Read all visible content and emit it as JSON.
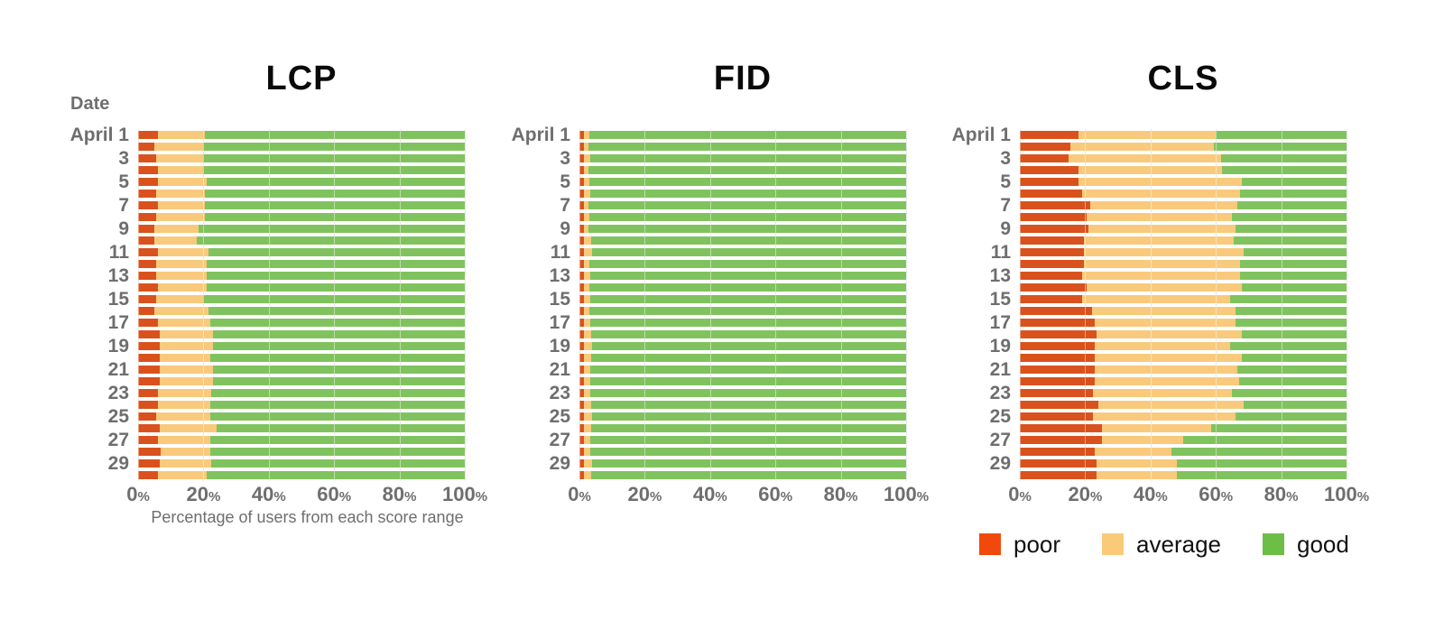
{
  "y_axis": {
    "title": "Date"
  },
  "x_axis": {
    "title": "Percentage of users from each score range",
    "tick_values": [
      0,
      20,
      40,
      60,
      80,
      100
    ],
    "tick_suffix": "%"
  },
  "legend": {
    "items": [
      {
        "key": "poor",
        "label": "poor"
      },
      {
        "key": "average",
        "label": "average"
      },
      {
        "key": "good",
        "label": "good"
      }
    ]
  },
  "colors": {
    "series": {
      "poor": "#d9521d",
      "average": "#f9ca7c",
      "good": "#80c35e"
    },
    "legend": {
      "poor": "#f1490c",
      "average": "#fbca79",
      "good": "#6cbe46"
    },
    "grid_back": "#d8d8d8",
    "grid_front": "rgba(255,255,255,0.45)",
    "label_text": "#6e6e6e",
    "title_text": "#0a0a0a"
  },
  "chart_data": [
    {
      "type": "bar",
      "stacked": true,
      "orientation": "horizontal",
      "title": "LCP",
      "xlabel": "Percentage of users from each score range",
      "ylabel": "Date",
      "xlim": [
        0,
        100
      ],
      "grid": "vertical lines every 20%",
      "legend_position": "none",
      "categories": [
        "April 1",
        "April 2",
        "April 3",
        "April 4",
        "April 5",
        "April 6",
        "April 7",
        "April 8",
        "April 9",
        "April 10",
        "April 11",
        "April 12",
        "April 13",
        "April 14",
        "April 15",
        "April 16",
        "April 17",
        "April 18",
        "April 19",
        "April 20",
        "April 21",
        "April 22",
        "April 23",
        "April 24",
        "April 25",
        "April 26",
        "April 27",
        "April 28",
        "April 29",
        "April 30"
      ],
      "y_labels": [
        "April 1",
        "",
        "3",
        "",
        "5",
        "",
        "7",
        "",
        "9",
        "",
        "11",
        "",
        "13",
        "",
        "15",
        "",
        "17",
        "",
        "19",
        "",
        "21",
        "",
        "23",
        "",
        "25",
        "",
        "27",
        "",
        "29",
        ""
      ],
      "series": [
        {
          "name": "poor",
          "values": [
            6,
            5,
            5.5,
            6,
            6,
            5.5,
            6,
            5.5,
            5,
            5,
            6,
            5.5,
            5.5,
            6,
            5.5,
            5,
            6,
            6.5,
            6.5,
            6.5,
            6.5,
            6.5,
            6,
            6,
            5.5,
            6.5,
            6,
            7,
            6.5,
            6
          ]
        },
        {
          "name": "average",
          "values": [
            14.5,
            15,
            14.5,
            14,
            15,
            15,
            14.5,
            15,
            13.5,
            13,
            15.5,
            15.5,
            15.5,
            15,
            14.5,
            16.5,
            16,
            16.5,
            16.5,
            15.5,
            16.5,
            16.5,
            16.5,
            16,
            16.5,
            17.5,
            16,
            15,
            16,
            15
          ]
        },
        {
          "name": "good",
          "values": [
            79.5,
            80,
            80,
            80,
            79,
            79.5,
            79.5,
            79.5,
            81.5,
            82,
            78.5,
            79,
            79,
            79,
            80,
            78.5,
            78,
            77,
            77,
            78,
            77,
            77,
            77.5,
            78,
            78,
            76,
            78,
            78,
            77.5,
            79
          ]
        }
      ]
    },
    {
      "type": "bar",
      "stacked": true,
      "orientation": "horizontal",
      "title": "FID",
      "xlabel": "",
      "ylabel": "",
      "xlim": [
        0,
        100
      ],
      "grid": "vertical lines every 20%",
      "legend_position": "none",
      "categories": [
        "April 1",
        "April 2",
        "April 3",
        "April 4",
        "April 5",
        "April 6",
        "April 7",
        "April 8",
        "April 9",
        "April 10",
        "April 11",
        "April 12",
        "April 13",
        "April 14",
        "April 15",
        "April 16",
        "April 17",
        "April 18",
        "April 19",
        "April 20",
        "April 21",
        "April 22",
        "April 23",
        "April 24",
        "April 25",
        "April 26",
        "April 27",
        "April 28",
        "April 29",
        "April 30"
      ],
      "y_labels": [
        "April 1",
        "",
        "3",
        "",
        "5",
        "",
        "7",
        "",
        "9",
        "",
        "11",
        "",
        "13",
        "",
        "15",
        "",
        "17",
        "",
        "19",
        "",
        "21",
        "",
        "23",
        "",
        "25",
        "",
        "27",
        "",
        "29",
        ""
      ],
      "series": [
        {
          "name": "poor",
          "values": [
            1.4,
            1.4,
            1.4,
            1.4,
            1.4,
            1.4,
            1.4,
            1.4,
            1.4,
            1.4,
            1.4,
            1.4,
            1.4,
            1.4,
            1.4,
            1.4,
            1.4,
            1.4,
            1.4,
            1.4,
            1.4,
            1.4,
            1.4,
            1.4,
            1.4,
            1.4,
            1.4,
            1.4,
            1.4,
            1.4
          ]
        },
        {
          "name": "average",
          "values": [
            1.6,
            1.4,
            1.8,
            1.4,
            1.6,
            1.8,
            1.4,
            1.6,
            1.4,
            2.2,
            2.4,
            1.6,
            1.8,
            1.6,
            1.8,
            1.6,
            1.8,
            2.2,
            2.4,
            2.2,
            1.8,
            2,
            1.8,
            2.2,
            2.4,
            2.2,
            1.8,
            2,
            2.4,
            2.2
          ]
        },
        {
          "name": "good",
          "values": [
            97,
            97.2,
            96.8,
            97.2,
            97,
            96.8,
            97.2,
            97,
            97.2,
            96.4,
            96.2,
            97,
            96.8,
            97,
            96.8,
            97,
            96.8,
            96.4,
            96.2,
            96.4,
            96.8,
            96.6,
            96.8,
            96.4,
            96.2,
            96.4,
            96.8,
            96.6,
            96.2,
            96.4
          ]
        }
      ]
    },
    {
      "type": "bar",
      "stacked": true,
      "orientation": "horizontal",
      "title": "CLS",
      "xlabel": "",
      "ylabel": "",
      "xlim": [
        0,
        100
      ],
      "grid": "vertical lines every 20%",
      "legend_position": "bottom",
      "categories": [
        "April 1",
        "April 2",
        "April 3",
        "April 4",
        "April 5",
        "April 6",
        "April 7",
        "April 8",
        "April 9",
        "April 10",
        "April 11",
        "April 12",
        "April 13",
        "April 14",
        "April 15",
        "April 16",
        "April 17",
        "April 18",
        "April 19",
        "April 20",
        "April 21",
        "April 22",
        "April 23",
        "April 24",
        "April 25",
        "April 26",
        "April 27",
        "April 28",
        "April 29",
        "April 30"
      ],
      "y_labels": [
        "April 1",
        "",
        "3",
        "",
        "5",
        "",
        "7",
        "",
        "9",
        "",
        "11",
        "",
        "13",
        "",
        "15",
        "",
        "17",
        "",
        "19",
        "",
        "21",
        "",
        "23",
        "",
        "25",
        "",
        "27",
        "",
        "29",
        ""
      ],
      "series": [
        {
          "name": "poor",
          "values": [
            18,
            15.5,
            15,
            18,
            18,
            19,
            21.5,
            20.5,
            21,
            19.5,
            19.5,
            19.5,
            19,
            20.5,
            19,
            22,
            23,
            23.5,
            23,
            23,
            23,
            23,
            22.5,
            24,
            22.5,
            25,
            25,
            23,
            23.5,
            23.5
          ]
        },
        {
          "name": "average",
          "values": [
            42,
            44,
            46.5,
            44,
            50,
            48.5,
            45,
            44.5,
            45,
            46,
            49,
            48,
            48.5,
            47.5,
            45.5,
            44,
            43,
            44.5,
            41.5,
            45,
            43.5,
            44,
            42.5,
            44.5,
            43.5,
            33.5,
            25,
            23.5,
            24.5,
            24.5
          ]
        },
        {
          "name": "good",
          "values": [
            40,
            40.5,
            38.5,
            38,
            32,
            32.5,
            33.5,
            35,
            34,
            34.5,
            31.5,
            32.5,
            32.5,
            32,
            35.5,
            34,
            34,
            32,
            35.5,
            32,
            33.5,
            33,
            35,
            31.5,
            34,
            41.5,
            50,
            53.5,
            52,
            52
          ]
        }
      ]
    }
  ]
}
